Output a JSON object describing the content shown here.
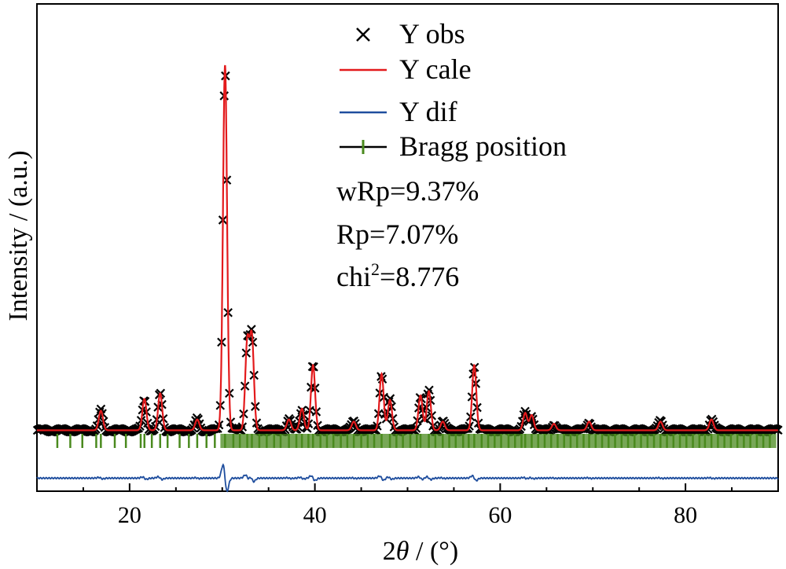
{
  "chart_data": {
    "type": "line",
    "title": "",
    "xlabel_parts": {
      "pre": "2",
      "italic": "θ",
      "post": " / (°)"
    },
    "ylabel": "Intensity / (a.u.)",
    "xlim": [
      10,
      90
    ],
    "ylim": [
      -0.12,
      1.0
    ],
    "xticks": [
      20,
      40,
      60,
      80
    ],
    "grid": false,
    "legend_position": "top-center",
    "colors": {
      "obs": "#000000",
      "calc": "#e31a1c",
      "diff": "#1f4e9e",
      "bragg": "#4a8a1e"
    },
    "legend": [
      {
        "key": "obs",
        "label": "Y obs",
        "marker": "x"
      },
      {
        "key": "calc",
        "label": "Y cale",
        "marker": "line"
      },
      {
        "key": "diff",
        "label": "Y dif",
        "marker": "line"
      },
      {
        "key": "bragg",
        "label": "Bragg position",
        "marker": "tick"
      }
    ],
    "stats": {
      "wRp": "wRp=9.37%",
      "Rp": "Rp=7.07%",
      "chi_pre": "chi",
      "chi_sup": "2",
      "chi_post": "=8.776"
    },
    "baseline": 0.02,
    "diff_offset": -0.09,
    "peaks": [
      {
        "x": 16.9,
        "h": 0.045
      },
      {
        "x": 21.6,
        "h": 0.072
      },
      {
        "x": 23.3,
        "h": 0.085
      },
      {
        "x": 27.3,
        "h": 0.025
      },
      {
        "x": 30.3,
        "h": 0.84
      },
      {
        "x": 32.7,
        "h": 0.2
      },
      {
        "x": 33.2,
        "h": 0.21
      },
      {
        "x": 37.2,
        "h": 0.025
      },
      {
        "x": 38.6,
        "h": 0.05
      },
      {
        "x": 39.8,
        "h": 0.15
      },
      {
        "x": 44.2,
        "h": 0.02
      },
      {
        "x": 47.2,
        "h": 0.13
      },
      {
        "x": 48.1,
        "h": 0.07
      },
      {
        "x": 51.4,
        "h": 0.08
      },
      {
        "x": 52.3,
        "h": 0.09
      },
      {
        "x": 53.8,
        "h": 0.02
      },
      {
        "x": 57.2,
        "h": 0.15
      },
      {
        "x": 62.7,
        "h": 0.04
      },
      {
        "x": 63.4,
        "h": 0.035
      },
      {
        "x": 65.8,
        "h": 0.015
      },
      {
        "x": 69.6,
        "h": 0.02
      },
      {
        "x": 77.3,
        "h": 0.02
      },
      {
        "x": 82.8,
        "h": 0.025
      }
    ],
    "bragg_positions": [
      12.2,
      13.6,
      14.9,
      16.4,
      16.9,
      18.4,
      19.6,
      21.2,
      21.6,
      22.4,
      23.3,
      24.1,
      25.4,
      26.4,
      27.3,
      28.3,
      29.2,
      30.3,
      31.2,
      31.9,
      32.7,
      33.2,
      34.0,
      34.8,
      35.6,
      36.3,
      37.2,
      38.0,
      38.6,
      39.3,
      39.8,
      40.6,
      41.3,
      42.0,
      42.8,
      43.5,
      44.2,
      45.0,
      45.7,
      46.4,
      47.2,
      48.1,
      48.8,
      49.5,
      50.3,
      51.0,
      51.4,
      52.3,
      53.0,
      53.8,
      54.5,
      55.2,
      56.0,
      56.6,
      57.2,
      58.0,
      58.7,
      59.4,
      60.1,
      60.9,
      61.6,
      62.3,
      62.7,
      63.4,
      64.1,
      64.8,
      65.5,
      66.2,
      66.9,
      67.6,
      68.3,
      69.0,
      69.6,
      70.3,
      71.0,
      71.7,
      72.4,
      73.1,
      73.8,
      74.5,
      75.2,
      75.9,
      76.6,
      77.3,
      78.0,
      78.7,
      79.4,
      80.1,
      80.8,
      81.5,
      82.1,
      82.8,
      83.5,
      84.2,
      84.9,
      85.6,
      86.3,
      87.0,
      87.7,
      88.4,
      89.1
    ]
  }
}
